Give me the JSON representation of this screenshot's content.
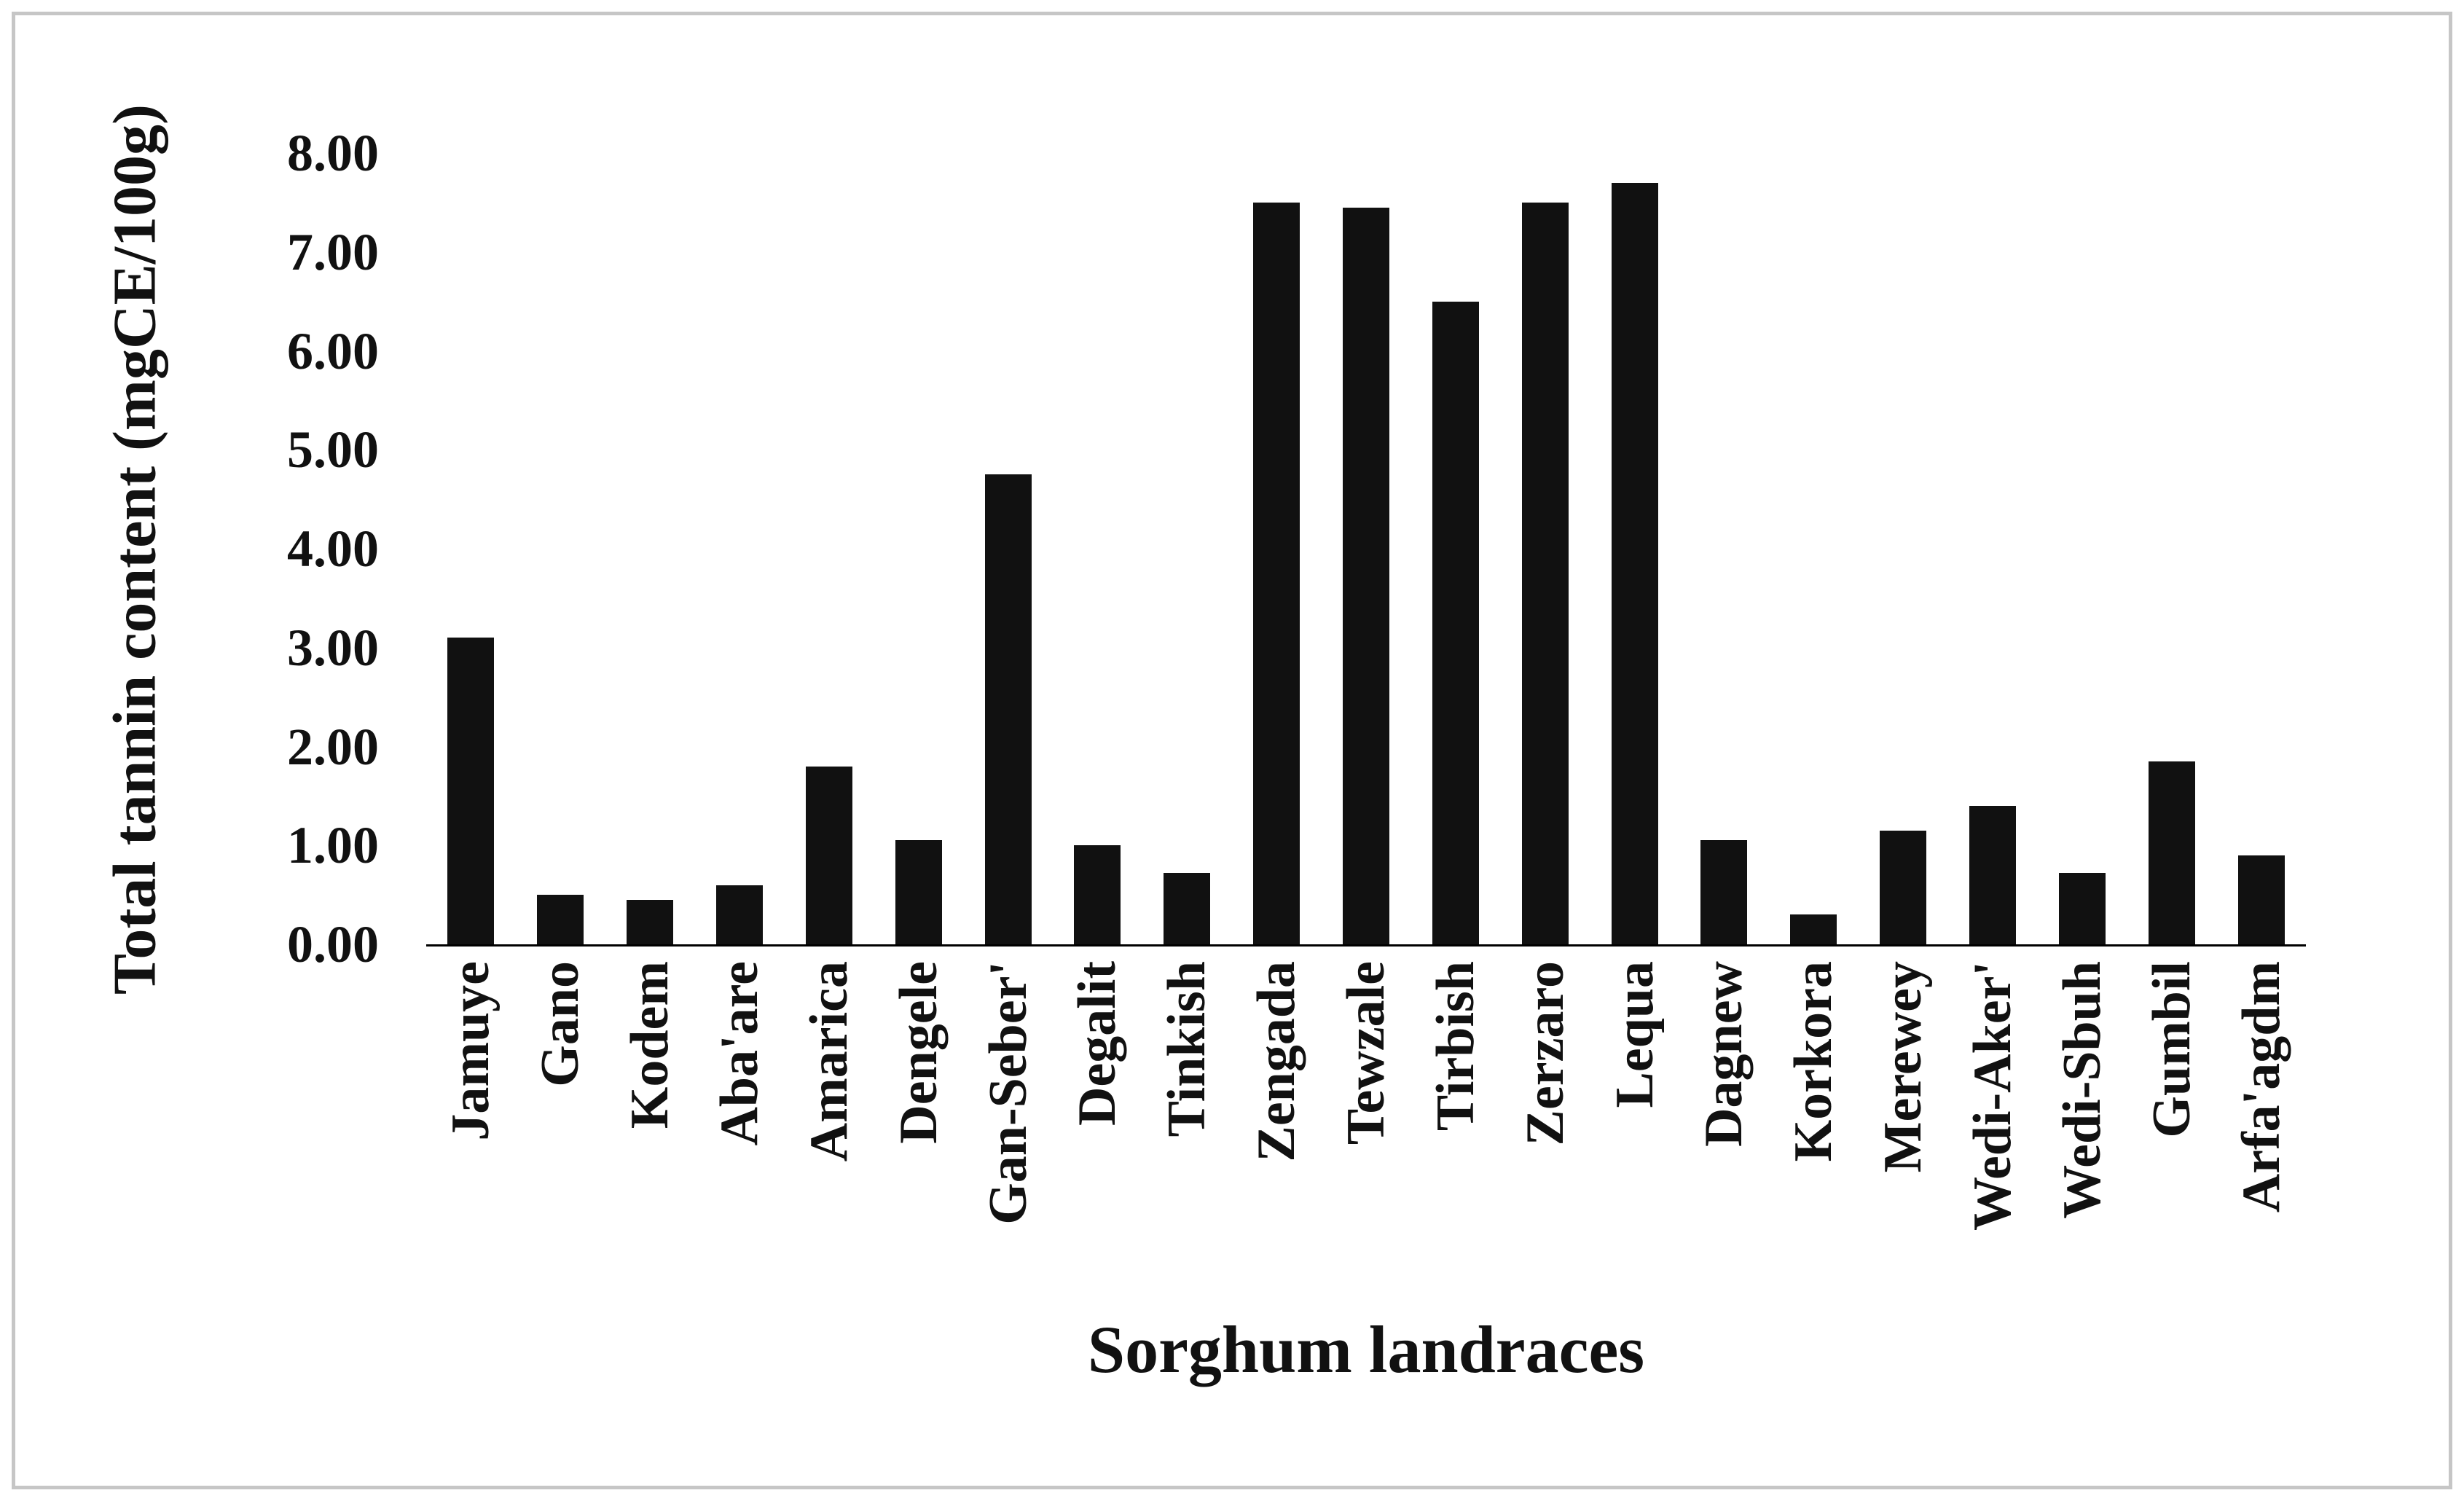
{
  "figure": {
    "background": "#ffffff",
    "border_color": "#c6c6c6",
    "bar_color": "#111111"
  },
  "chart_data": {
    "type": "bar",
    "title": "",
    "xlabel": "Sorghum landraces",
    "ylabel": "Total tannin content (mgCE/100g)",
    "ylim": [
      0,
      8
    ],
    "y_ticks": [
      "0.00",
      "1.00",
      "2.00",
      "3.00",
      "4.00",
      "5.00",
      "6.00",
      "7.00",
      "8.00"
    ],
    "grid": false,
    "legend_position": "none",
    "categories": [
      "Jamuye",
      "Gano",
      "Kodem",
      "Aba'are",
      "Amarica",
      "Dengele",
      "Gan-Seber'",
      "Degalit",
      "Tinkish",
      "Zengada",
      "Tewzale",
      "Tirbish",
      "Zerzaro",
      "Lequa",
      "Dagnew",
      "Korkora",
      "Merewey",
      "Wedi-Aker'",
      "Wedi-Sbuh",
      "Gumbil",
      "Arfa'agdm"
    ],
    "values": [
      3.1,
      0.5,
      0.45,
      0.6,
      1.8,
      1.05,
      4.75,
      1.0,
      0.72,
      7.5,
      7.45,
      6.5,
      7.5,
      7.7,
      1.05,
      0.3,
      1.15,
      1.4,
      0.72,
      1.85,
      0.9
    ]
  }
}
